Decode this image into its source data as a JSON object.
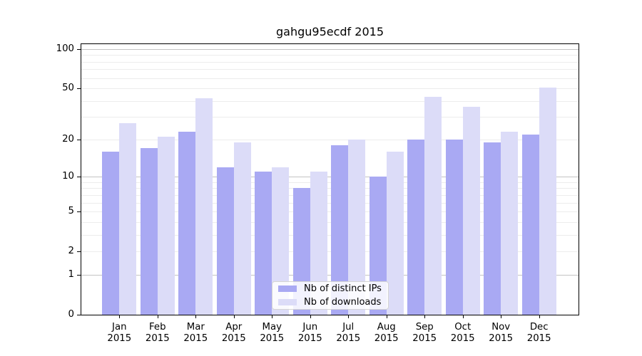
{
  "title": "gahgu95ecdf 2015",
  "colors": {
    "ips_bar": "#a9a9f3",
    "downloads_bar": "#dcdcf8",
    "grid_minor": "#ececec",
    "grid_major": "#c4c4c4",
    "axis": "#000000"
  },
  "legend": {
    "items": [
      {
        "label": "Nb of distinct IPs",
        "series": "ips"
      },
      {
        "label": "Nb of downloads",
        "series": "downloads"
      }
    ]
  },
  "chart_data": {
    "type": "bar",
    "title": "gahgu95ecdf 2015",
    "categories": [
      "Jan",
      "Feb",
      "Mar",
      "Apr",
      "May",
      "Jun",
      "Jul",
      "Aug",
      "Sep",
      "Oct",
      "Nov",
      "Dec"
    ],
    "year_label": "2015",
    "series": [
      {
        "name": "Nb of distinct IPs",
        "values": [
          16,
          17,
          23,
          12,
          11,
          8,
          18,
          10,
          20,
          20,
          19,
          22
        ]
      },
      {
        "name": "Nb of downloads",
        "values": [
          27,
          21,
          42,
          19,
          12,
          11,
          20,
          16,
          43,
          36,
          23,
          51
        ]
      }
    ],
    "yscale": "log10(value+1)",
    "ylim": [
      0,
      112
    ],
    "yticks": [
      0,
      1,
      2,
      5,
      10,
      20,
      50,
      100
    ],
    "major_gridlines": [
      1,
      10,
      100
    ],
    "minor_gridlines": [
      2,
      3,
      4,
      5,
      6,
      7,
      8,
      9,
      20,
      30,
      40,
      50,
      60,
      70,
      80,
      90
    ],
    "grid": "horizontal",
    "legend_position": "lower center",
    "xlabel": "",
    "ylabel": ""
  }
}
